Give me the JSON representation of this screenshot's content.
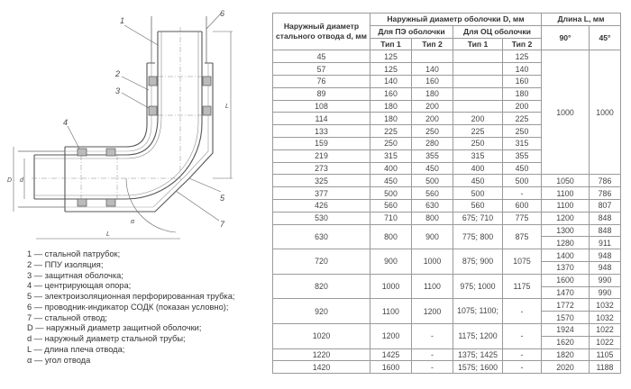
{
  "drawing": {
    "callouts": [
      "1",
      "2",
      "3",
      "4",
      "5",
      "6",
      "7"
    ],
    "dim_labels": {
      "D": "D",
      "d": "d",
      "L_horizontal": "L",
      "L_vertical": "L",
      "alpha": "α"
    }
  },
  "legend": [
    "1 — стальной патрубок;",
    "2 — ППУ изоляция;",
    "3 — защитная оболочка;",
    "4 — центрирующая опора;",
    "5 — электроизоляционная перфорированная трубка;",
    "6 — проводник-индикатор СОДК (показан условно);",
    "7 — стальной отвод;",
    "D — наружный диаметр защитной оболочки;",
    "d — наружный диаметр стальной трубы;",
    "L — длина плеча отвода;",
    "α — угол отвода"
  ],
  "table": {
    "headers": {
      "steel_diameter": "Наружный диаметр стального отвода d, мм",
      "shell_diameter": "Наружный диаметр оболочки D, мм",
      "length": "Длина L, мм",
      "pe_shell": "Для ПЭ оболочки",
      "oc_shell": "Для ОЦ оболочки",
      "type1": "Тип 1",
      "type2": "Тип 2",
      "angle90": "90°",
      "angle45": "45°"
    },
    "small_group": {
      "rows": [
        [
          "45",
          "125",
          "",
          "",
          "125"
        ],
        [
          "57",
          "125",
          "140",
          "",
          "140"
        ],
        [
          "76",
          "140",
          "160",
          "",
          "160"
        ],
        [
          "89",
          "160",
          "180",
          "",
          "180"
        ],
        [
          "108",
          "180",
          "200",
          "",
          "200"
        ],
        [
          "114",
          "180",
          "200",
          "200",
          "225"
        ],
        [
          "133",
          "225",
          "250",
          "225",
          "250"
        ],
        [
          "159",
          "250",
          "280",
          "250",
          "315"
        ],
        [
          "219",
          "315",
          "355",
          "315",
          "355"
        ],
        [
          "273",
          "400",
          "450",
          "400",
          "450"
        ]
      ],
      "l90": "1000",
      "l45": "1000"
    },
    "large_rows": [
      {
        "cells": [
          "325",
          "450",
          "500",
          "450",
          "500"
        ],
        "L": [
          [
            "1050",
            "786"
          ]
        ]
      },
      {
        "cells": [
          "377",
          "500",
          "560",
          "500",
          "-"
        ],
        "L": [
          [
            "1100",
            "786"
          ]
        ]
      },
      {
        "cells": [
          "426",
          "560",
          "630",
          "560",
          "600"
        ],
        "L": [
          [
            "1100",
            "807"
          ]
        ]
      },
      {
        "cells": [
          "530",
          "710",
          "800",
          "675; 710",
          "775"
        ],
        "L": [
          [
            "1200",
            "848"
          ]
        ]
      },
      {
        "cells": [
          "630",
          "800",
          "900",
          "775; 800",
          "875"
        ],
        "L": [
          [
            "1300",
            "848"
          ],
          [
            "1280",
            "911"
          ]
        ]
      },
      {
        "cells": [
          "720",
          "900",
          "1000",
          "875; 900",
          "1075"
        ],
        "L": [
          [
            "1400",
            "948"
          ],
          [
            "1370",
            "948"
          ]
        ]
      },
      {
        "cells": [
          "820",
          "1000",
          "1100",
          "975; 1000",
          "1175"
        ],
        "L": [
          [
            "1600",
            "990"
          ],
          [
            "1470",
            "990"
          ]
        ]
      },
      {
        "cells": [
          "920",
          "1100",
          "1200",
          "1075; 1100;",
          "-"
        ],
        "L": [
          [
            "1772",
            "1032"
          ],
          [
            "1570",
            "1032"
          ]
        ]
      },
      {
        "cells": [
          "1020",
          "1200",
          "-",
          "1175; 1200",
          "-"
        ],
        "L": [
          [
            "1924",
            "1022"
          ],
          [
            "1620",
            "1022"
          ]
        ]
      },
      {
        "cells": [
          "1220",
          "1425",
          "-",
          "1375; 1425",
          "-"
        ],
        "L": [
          [
            "1820",
            "1105"
          ]
        ]
      },
      {
        "cells": [
          "1420",
          "1600",
          "-",
          "1575; 1600",
          "-"
        ],
        "L": [
          [
            "2020",
            "1188"
          ]
        ]
      }
    ]
  }
}
